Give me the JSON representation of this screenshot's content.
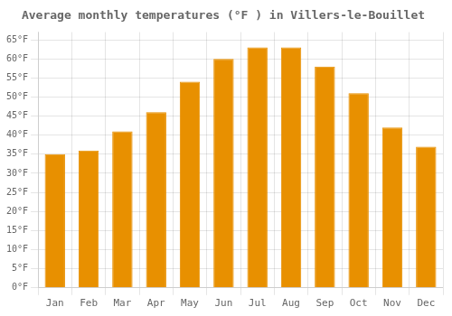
{
  "chart_data": {
    "type": "bar",
    "title": "Average monthly temperatures (°F ) in Villers-le-Bouillet",
    "categories": [
      "Jan",
      "Feb",
      "Mar",
      "Apr",
      "May",
      "Jun",
      "Jul",
      "Aug",
      "Sep",
      "Oct",
      "Nov",
      "Dec"
    ],
    "values": [
      35,
      36,
      41,
      46,
      54,
      60,
      63,
      63,
      58,
      51,
      42,
      37
    ],
    "color": "#E89000",
    "ylim": [
      0,
      67
    ],
    "yticks": [
      {
        "value": 0,
        "label": "0°F"
      },
      {
        "value": 5,
        "label": "5°F"
      },
      {
        "value": 10,
        "label": "10°F"
      },
      {
        "value": 15,
        "label": "15°F"
      },
      {
        "value": 20,
        "label": "20°F"
      },
      {
        "value": 25,
        "label": "25°F"
      },
      {
        "value": 30,
        "label": "30°F"
      },
      {
        "value": 35,
        "label": "35°F"
      },
      {
        "value": 40,
        "label": "40°F"
      },
      {
        "value": 45,
        "label": "45°F"
      },
      {
        "value": 50,
        "label": "50°F"
      },
      {
        "value": 55,
        "label": "55°F"
      },
      {
        "value": 60,
        "label": "60°F"
      },
      {
        "value": 65,
        "label": "65°F"
      }
    ],
    "grid": true
  }
}
